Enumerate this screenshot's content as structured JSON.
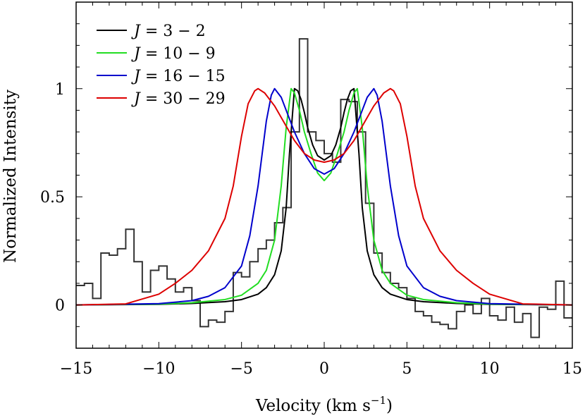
{
  "chart_data": {
    "type": "line",
    "title": "",
    "xlabel": "Velocity (km s−1)",
    "xlabel_main": "Velocity (km s",
    "xlabel_sup": "−1",
    "xlabel_close": ")",
    "ylabel": "Normalized Intensity",
    "xlim": [
      -15,
      15
    ],
    "ylim": [
      -0.2,
      1.4
    ],
    "xticks": [
      -15,
      -10,
      -5,
      0,
      5,
      10,
      15
    ],
    "xtick_labels": [
      "−15",
      "−10",
      "−5",
      "0",
      "5",
      "10",
      "15"
    ],
    "yticks": [
      0,
      0.5,
      1
    ],
    "ytick_labels": [
      "0",
      "0.5",
      "1"
    ],
    "grid": false,
    "legend_position": "top-left",
    "observed_spectrum": {
      "style": "histogram",
      "color": "#333333",
      "bin_width": 0.5,
      "bin_starts": [
        -15.0,
        -14.5,
        -14.0,
        -13.5,
        -13.0,
        -12.5,
        -12.0,
        -11.5,
        -11.0,
        -10.5,
        -10.0,
        -9.5,
        -9.0,
        -8.5,
        -8.0,
        -7.5,
        -7.0,
        -6.5,
        -6.0,
        -5.5,
        -5.0,
        -4.5,
        -4.0,
        -3.5,
        -3.0,
        -2.5,
        -2.0,
        -1.5,
        -1.0,
        -0.5,
        0.0,
        0.5,
        1.0,
        1.5,
        2.0,
        2.5,
        3.0,
        3.5,
        4.0,
        4.5,
        5.0,
        5.5,
        6.0,
        6.5,
        7.0,
        7.5,
        8.0,
        8.5,
        9.0,
        9.5,
        10.0,
        10.5,
        11.0,
        11.5,
        12.0,
        12.5,
        13.0,
        13.5,
        14.0,
        14.5
      ],
      "values": [
        0.09,
        0.1,
        0.03,
        0.24,
        0.23,
        0.26,
        0.35,
        0.2,
        0.06,
        0.16,
        0.18,
        0.12,
        0.06,
        0.08,
        0.02,
        -0.1,
        -0.07,
        -0.08,
        -0.03,
        0.15,
        0.13,
        0.2,
        0.26,
        0.3,
        0.38,
        0.45,
        0.8,
        1.23,
        0.8,
        0.76,
        0.7,
        0.66,
        0.95,
        0.94,
        0.8,
        0.47,
        0.24,
        0.15,
        0.1,
        0.08,
        0.03,
        -0.03,
        -0.05,
        -0.08,
        -0.09,
        -0.11,
        -0.03,
        0.0,
        -0.04,
        0.03,
        -0.05,
        -0.07,
        -0.01,
        -0.08,
        -0.04,
        -0.15,
        -0.01,
        -0.02,
        0.11,
        -0.06
      ]
    },
    "series": [
      {
        "name_prefix": "J",
        "name_rest": " = 3 − 2",
        "color": "#000000",
        "x": [
          -15,
          -10,
          -8,
          -6,
          -5,
          -4,
          -3.5,
          -3,
          -2.6,
          -2.3,
          -2.1,
          -1.9,
          -1.8,
          -1.6,
          -1.4,
          -1.2,
          -1.0,
          -0.7,
          -0.4,
          0,
          0.4,
          0.7,
          1.0,
          1.2,
          1.4,
          1.6,
          1.8,
          1.9,
          2.1,
          2.3,
          2.6,
          3,
          3.5,
          4,
          5,
          6,
          8,
          10,
          15
        ],
        "y": [
          0,
          0.003,
          0.007,
          0.015,
          0.025,
          0.05,
          0.08,
          0.14,
          0.25,
          0.45,
          0.7,
          0.9,
          1.0,
          0.99,
          0.95,
          0.89,
          0.82,
          0.74,
          0.69,
          0.67,
          0.69,
          0.74,
          0.82,
          0.89,
          0.95,
          0.99,
          1.0,
          0.9,
          0.7,
          0.45,
          0.25,
          0.14,
          0.08,
          0.05,
          0.025,
          0.015,
          0.007,
          0.003,
          0
        ]
      },
      {
        "name_prefix": "J",
        "name_rest": " = 10 − 9",
        "color": "#22dd22",
        "x": [
          -15,
          -10,
          -8,
          -6,
          -5,
          -4,
          -3.5,
          -3,
          -2.6,
          -2.3,
          -2.0,
          -1.8,
          -1.5,
          -1.2,
          -0.8,
          -0.4,
          0,
          0.4,
          0.8,
          1.2,
          1.5,
          1.8,
          2.0,
          2.3,
          2.6,
          3,
          3.5,
          4,
          5,
          6,
          8,
          10,
          15
        ],
        "y": [
          0,
          0.004,
          0.01,
          0.025,
          0.045,
          0.1,
          0.16,
          0.3,
          0.55,
          0.82,
          1.0,
          0.98,
          0.9,
          0.8,
          0.7,
          0.61,
          0.575,
          0.61,
          0.7,
          0.8,
          0.9,
          0.98,
          1.0,
          0.82,
          0.55,
          0.3,
          0.16,
          0.1,
          0.045,
          0.025,
          0.01,
          0.004,
          0
        ]
      },
      {
        "name_prefix": "J",
        "name_rest": " = 16 − 15",
        "color": "#0000cc",
        "x": [
          -15,
          -10,
          -8,
          -7,
          -6,
          -5,
          -4.5,
          -4,
          -3.5,
          -3.2,
          -3.0,
          -2.6,
          -2.2,
          -1.8,
          -1.2,
          -0.6,
          0,
          0.6,
          1.2,
          1.8,
          2.2,
          2.6,
          3.0,
          3.2,
          3.5,
          4,
          4.5,
          5,
          6,
          7,
          8,
          10,
          15
        ],
        "y": [
          0,
          0.006,
          0.02,
          0.04,
          0.08,
          0.18,
          0.32,
          0.55,
          0.85,
          0.97,
          1.0,
          0.96,
          0.88,
          0.8,
          0.7,
          0.63,
          0.605,
          0.63,
          0.7,
          0.8,
          0.88,
          0.96,
          1.0,
          0.97,
          0.85,
          0.55,
          0.32,
          0.18,
          0.08,
          0.04,
          0.02,
          0.006,
          0
        ]
      },
      {
        "name_prefix": "J",
        "name_rest": " = 30 − 29",
        "color": "#dd0000",
        "x": [
          -15,
          -12,
          -10,
          -9,
          -8,
          -7,
          -6,
          -5.5,
          -5,
          -4.6,
          -4.2,
          -4.0,
          -3.6,
          -3.0,
          -2.4,
          -1.8,
          -1.2,
          -0.6,
          0,
          0.6,
          1.2,
          1.8,
          2.4,
          3.0,
          3.6,
          4.0,
          4.2,
          4.6,
          5,
          5.5,
          6,
          7,
          8,
          9,
          10,
          12,
          15
        ],
        "y": [
          0,
          0.005,
          0.05,
          0.1,
          0.16,
          0.25,
          0.4,
          0.55,
          0.78,
          0.93,
          0.99,
          1.0,
          0.98,
          0.92,
          0.84,
          0.76,
          0.7,
          0.67,
          0.66,
          0.67,
          0.7,
          0.76,
          0.84,
          0.92,
          0.98,
          1.0,
          0.99,
          0.93,
          0.78,
          0.55,
          0.4,
          0.25,
          0.16,
          0.1,
          0.05,
          0.005,
          0
        ]
      }
    ]
  }
}
